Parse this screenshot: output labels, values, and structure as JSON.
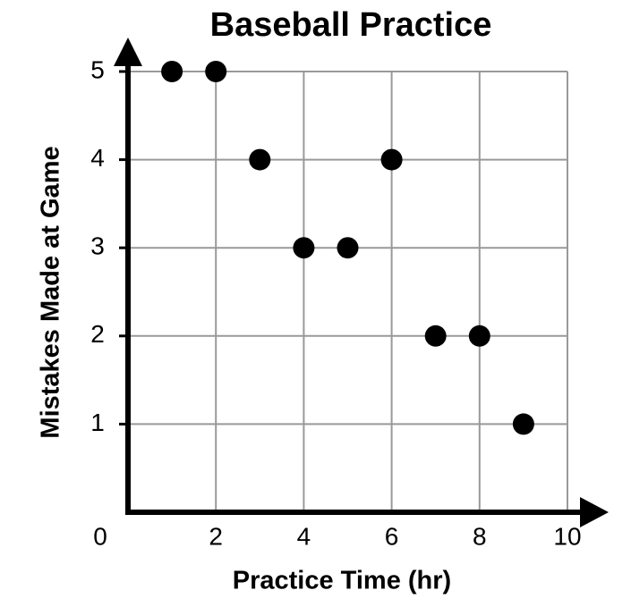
{
  "chart_data": {
    "type": "scatter",
    "title": "Baseball Practice",
    "x_label": "Practice Time (hr)",
    "y_label": "Mistakes Made at Game",
    "x": [
      1,
      2,
      3,
      6,
      4,
      5,
      7,
      8,
      9
    ],
    "values": [
      5,
      5,
      4,
      4,
      3,
      3,
      2,
      2,
      1
    ],
    "color": "#000000",
    "xlim": [
      0,
      10
    ],
    "ylim": [
      0,
      5
    ],
    "xticks": [
      0,
      2,
      4,
      6,
      8,
      10
    ],
    "yticks": [
      1,
      2,
      3,
      4,
      5
    ],
    "grid": true
  }
}
